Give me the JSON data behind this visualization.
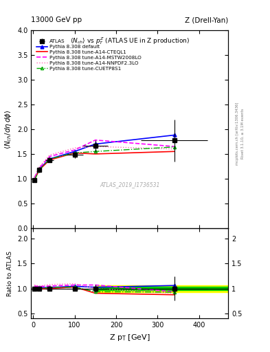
{
  "title_left": "13000 GeV pp",
  "title_right": "Z (Drell-Yan)",
  "ylabel_main": "<N_{ch}/d\\eta d\\phi>",
  "ylabel_ratio": "Ratio to ATLAS",
  "xlabel": "Z p_{T} [GeV]",
  "main_title": "<N_{ch}> vs p_{T}^{Z} (ATLAS UE in Z production)",
  "watermark": "ATLAS_2019_I1736531",
  "right_label_top": "Rivet 3.1.10, ≥ 3.1M events",
  "right_label_mid": "[arXiv:1306.3436]",
  "right_label_bot": "mcplots.cern.ch",
  "ylim_main": [
    0,
    4
  ],
  "ylim_ratio": [
    0.4,
    2.2
  ],
  "xlim": [
    -5,
    470
  ],
  "atlas_x": [
    3,
    15,
    40,
    100,
    150,
    340
  ],
  "atlas_y": [
    0.97,
    1.18,
    1.38,
    1.48,
    1.66,
    1.77
  ],
  "atlas_yerr": [
    0.04,
    0.05,
    0.05,
    0.06,
    0.12,
    0.42
  ],
  "atlas_xerr": [
    3,
    5,
    10,
    20,
    30,
    80
  ],
  "pythia_default_x": [
    3,
    15,
    40,
    100,
    150,
    340
  ],
  "pythia_default_y": [
    0.98,
    1.2,
    1.4,
    1.55,
    1.7,
    1.88
  ],
  "pythia_cteq_x": [
    3,
    15,
    40,
    100,
    150,
    340
  ],
  "pythia_cteq_y": [
    0.98,
    1.18,
    1.38,
    1.52,
    1.5,
    1.55
  ],
  "pythia_mstw_x": [
    3,
    15,
    40,
    100,
    150,
    340
  ],
  "pythia_mstw_y": [
    1.02,
    1.22,
    1.45,
    1.58,
    1.78,
    1.65
  ],
  "pythia_nnpdf_x": [
    3,
    15,
    40,
    100,
    150,
    340
  ],
  "pythia_nnpdf_y": [
    1.04,
    1.24,
    1.48,
    1.62,
    1.65,
    1.6
  ],
  "pythia_cuetp_x": [
    3,
    15,
    40,
    100,
    150,
    340
  ],
  "pythia_cuetp_y": [
    0.97,
    1.18,
    1.4,
    1.52,
    1.55,
    1.64
  ],
  "ratio_default_y": [
    1.01,
    1.02,
    1.02,
    1.045,
    1.025,
    1.06
  ],
  "ratio_cteq_y": [
    1.01,
    1.0,
    1.0,
    1.03,
    0.905,
    0.875
  ],
  "ratio_mstw_y": [
    1.05,
    1.04,
    1.05,
    1.07,
    1.07,
    0.935
  ],
  "ratio_nnpdf_y": [
    1.07,
    1.05,
    1.08,
    1.095,
    1.0,
    0.905
  ],
  "ratio_cuetp_y": [
    1.0,
    1.0,
    1.02,
    1.03,
    0.935,
    0.928
  ],
  "atlas_ratio_yerr": [
    0.04,
    0.04,
    0.036,
    0.04,
    0.072,
    0.237
  ],
  "color_atlas": "#000000",
  "color_default": "#0000ff",
  "color_cteq": "#ff0000",
  "color_mstw": "#ff00ff",
  "color_nnpdf": "#ff69b4",
  "color_cuetp": "#00aa00",
  "band_yellow": "#ffff00",
  "band_green": "#00cc00",
  "band_xstart": 155
}
